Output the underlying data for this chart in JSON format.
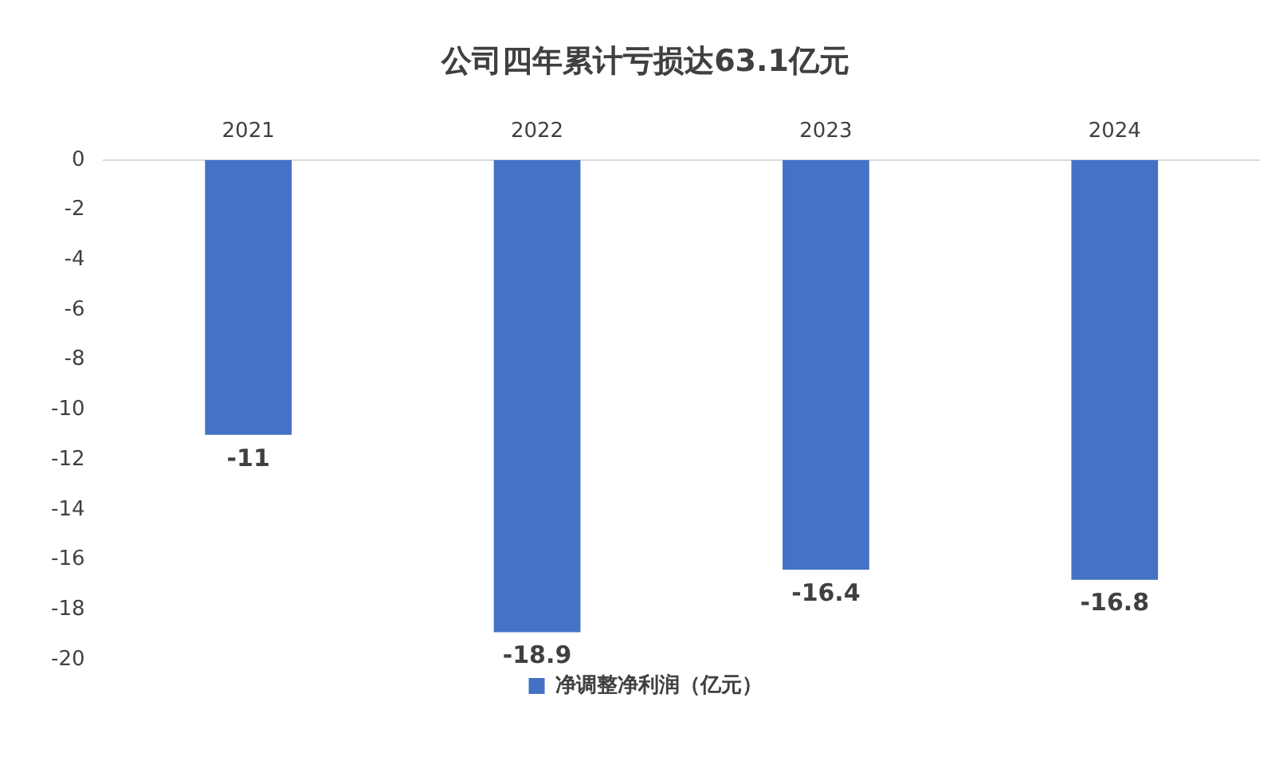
{
  "chart_data": {
    "type": "bar",
    "title": "公司四年累计亏损达63.1亿元",
    "categories": [
      "2021",
      "2022",
      "2023",
      "2024"
    ],
    "series": [
      {
        "name": "净调整净利润（亿元）",
        "color": "#4472c4",
        "values": [
          -11,
          -18.9,
          -16.4,
          -16.8
        ]
      }
    ],
    "ylim": [
      -20,
      0
    ],
    "yticks": [
      0,
      -2,
      -4,
      -6,
      -8,
      -10,
      -12,
      -14,
      -16,
      -18,
      -20
    ],
    "grid": false,
    "legend": "bottom",
    "data_labels": true
  }
}
